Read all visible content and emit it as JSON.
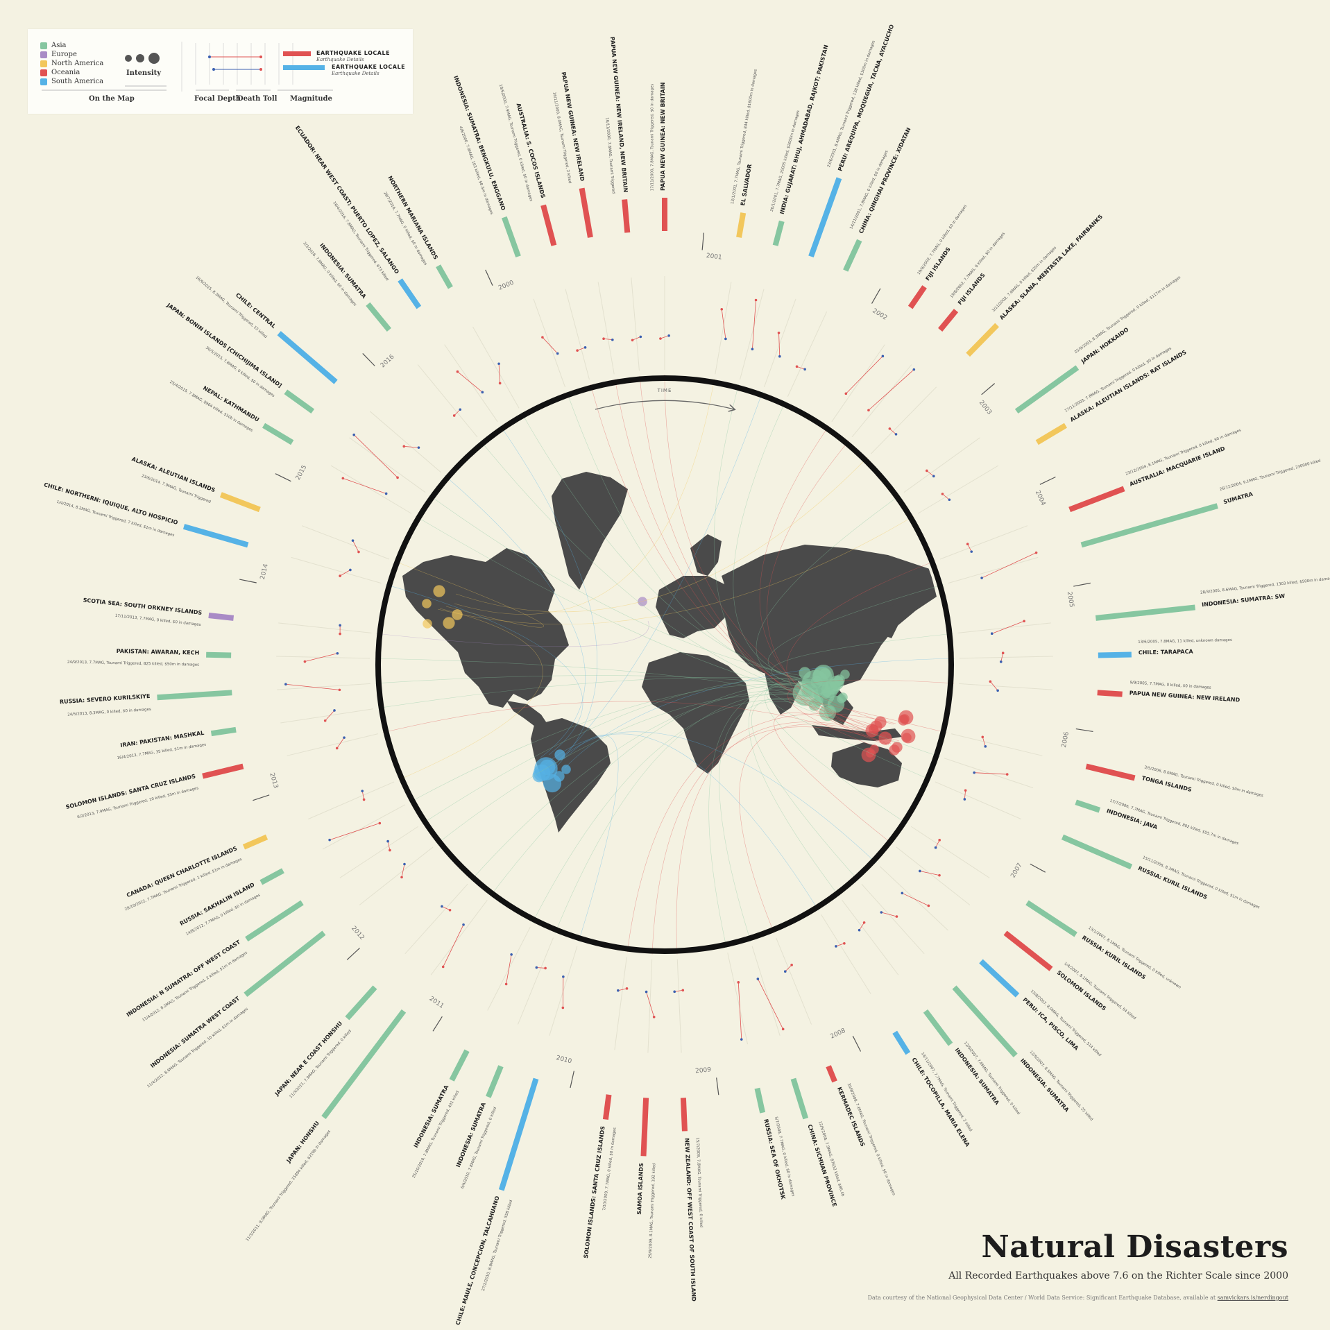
{
  "title": "Natural Disasters",
  "subtitle": "All Recorded Earthquakes above 7.6 on the Richter Scale since 2000",
  "credit": "Data courtesy of the National Geophysical Data Center / World Data Service: Significant Earthquake Database, available at",
  "credit_link": "samvickars.is/nerdingout",
  "time_label": "TIME",
  "legend": {
    "regions": [
      {
        "name": "Asia",
        "color": "#86c6a0"
      },
      {
        "name": "Europe",
        "color": "#a98bc6"
      },
      {
        "name": "North America",
        "color": "#f2c75c"
      },
      {
        "name": "Oceania",
        "color": "#e05252"
      },
      {
        "name": "South America",
        "color": "#55b2e6"
      }
    ],
    "on_the_map": "On the Map",
    "intensity": "Intensity",
    "focal_depth": "Focal Depth",
    "death_toll": "Death Toll",
    "magnitude": "Magnitude",
    "example_title": "EARTHQUAKE LOCALE",
    "example_sub": "Earthquake Details"
  },
  "colors": {
    "Asia": "#86c6a0",
    "Europe": "#a98bc6",
    "North America": "#f2c75c",
    "Oceania": "#e05252",
    "South America": "#55b2e6",
    "land": "#4a4a4a",
    "ring": "#111111",
    "background": "#f4f2e2"
  },
  "chart_data": {
    "type": "radial-timeline",
    "years": [
      "2000",
      "2001",
      "2002",
      "2003",
      "2004",
      "2005",
      "2006",
      "2007",
      "2008",
      "2009",
      "2010",
      "2011",
      "2012",
      "2013",
      "2014",
      "2015",
      "2016"
    ],
    "earthquakes": [
      {
        "year": "2000",
        "name": "INDONESIA: SUMATRA: BENGKULU, ENGGANO",
        "details": "4/6/2000, 7.9MAG, 103 killed, $8.3m in damages",
        "region": "Asia",
        "mag": 7.9,
        "deaths": 103,
        "depth": 33
      },
      {
        "year": "2000",
        "name": "AUSTRALIA: S. COCOS ISLANDS",
        "details": "18/6/2000, 7.9MAG, Tsunami Triggered, 0 killed, $0 in damages",
        "region": "Oceania",
        "mag": 7.9,
        "deaths": 0,
        "depth": 10
      },
      {
        "year": "2000",
        "name": "PAPUA NEW GUINEA: NEW IRELAND",
        "details": "16/11/2000, 8.0MAG, Tsunami Triggered, 2 killed",
        "region": "Oceania",
        "mag": 8.0,
        "deaths": 2,
        "depth": 33
      },
      {
        "year": "2000",
        "name": "PAPUA NEW GUINEA: NEW IRELAND, NEW BRITAIN",
        "details": "16/11/2000, 7.8MAG, Tsunami Triggered",
        "region": "Oceania",
        "mag": 7.8,
        "deaths": 0,
        "depth": 30
      },
      {
        "year": "2000",
        "name": "PAPUA NEW GUINEA: NEW BRITAIN",
        "details": "17/11/2000, 7.8MAG, Tsunami Triggered, $0 in damages",
        "region": "Oceania",
        "mag": 7.8,
        "deaths": 0,
        "depth": 33
      },
      {
        "year": "2001",
        "name": "EL SALVADOR",
        "details": "13/1/2001, 7.7MAG, Tsunami Triggered, 844 killed, $1600m in damages",
        "region": "North America",
        "mag": 7.7,
        "deaths": 844,
        "depth": 60
      },
      {
        "year": "2001",
        "name": "INDIA: GUJARAT: BHUJ, AHMADABAD, RAJKOT; PAKISTAN",
        "details": "26/1/2001, 7.7MAG, 20005 killed, $2600m in damages",
        "region": "Asia",
        "mag": 7.7,
        "deaths": 20005,
        "depth": 16
      },
      {
        "year": "2001",
        "name": "PERU: AREQUIPA, MOQUEGUA, TACNA, AYACUCHO",
        "details": "23/6/2001, 8.4MAG, Tsunami Triggered, 138 killed, $300m in damages",
        "region": "South America",
        "mag": 8.4,
        "deaths": 138,
        "depth": 33
      },
      {
        "year": "2001",
        "name": "CHINA: QINGHAI PROVINCE: XIDATAN",
        "details": "14/11/2001, 7.8MAG, 0 killed, $0 in damages",
        "region": "Asia",
        "mag": 7.8,
        "deaths": 0,
        "depth": 10
      },
      {
        "year": "2002",
        "name": "FIJI ISLANDS",
        "details": "19/8/2002, 7.7MAG, 0 killed, $0 in damages",
        "region": "Oceania",
        "mag": 7.7,
        "deaths": 0,
        "depth": 580
      },
      {
        "year": "2002",
        "name": "FIJI ISLANDS",
        "details": "19/8/2002, 7.7MAG, 0 killed, $0 in damages",
        "region": "Oceania",
        "mag": 7.7,
        "deaths": 0,
        "depth": 675
      },
      {
        "year": "2002",
        "name": "ALASKA: SLANA, MENTASTA LAKE, FAIRBANKS",
        "details": "3/11/2002, 7.9MAG, 0 killed, $20m in damages",
        "region": "North America",
        "mag": 7.9,
        "deaths": 0,
        "depth": 5
      },
      {
        "year": "2003",
        "name": "JAPAN: HOKKAIDO",
        "details": "25/9/2003, 8.3MAG, Tsunami Triggered, 0 killed, $117m in damages",
        "region": "Asia",
        "mag": 8.3,
        "deaths": 0,
        "depth": 27
      },
      {
        "year": "2003",
        "name": "ALASKA: ALEUTIAN ISLANDS: RAT ISLANDS",
        "details": "17/11/2003, 7.8MAG, Tsunami Triggered, 0 killed, $0 in damages",
        "region": "North America",
        "mag": 7.8,
        "deaths": 0,
        "depth": 33
      },
      {
        "year": "2004",
        "name": "AUSTRALIA: MACQUARIE ISLAND",
        "details": "23/12/2004, 8.1MAG, Tsunami Triggered, 0 killed, $0 in damages",
        "region": "Oceania",
        "mag": 8.1,
        "deaths": 0,
        "depth": 10
      },
      {
        "year": "2004",
        "name": "SUMATRA",
        "details": "26/12/2004, 9.1MAG, Tsunami Triggered, 230000 killed",
        "region": "Asia",
        "mag": 9.1,
        "deaths": 230000,
        "depth": 30
      },
      {
        "year": "2005",
        "name": "INDONESIA: SUMATRA: SW",
        "details": "28/3/2005, 8.6MAG, Tsunami Triggered, 1303 killed, $500m in damages",
        "region": "Asia",
        "mag": 8.6,
        "deaths": 1303,
        "depth": 30
      },
      {
        "year": "2005",
        "name": "CHILE: TARAPACA",
        "details": "13/6/2005, 7.8MAG, 11 killed, unknown damages",
        "region": "South America",
        "mag": 7.8,
        "deaths": 11,
        "depth": 115
      },
      {
        "year": "2005",
        "name": "PAPUA NEW GUINEA: NEW IRELAND",
        "details": "9/9/2005, 7.7MAG, 0 killed, $0 in damages",
        "region": "Oceania",
        "mag": 7.7,
        "deaths": 0,
        "depth": 90
      },
      {
        "year": "2006",
        "name": "TONGA ISLANDS",
        "details": "3/5/2006, 8.0MAG, Tsunami Triggered, 0 killed, $0m in damages",
        "region": "Oceania",
        "mag": 8.0,
        "deaths": 0,
        "depth": 55
      },
      {
        "year": "2006",
        "name": "INDONESIA: JAVA",
        "details": "17/7/2006, 7.7MAG, Tsunami Triggered, 802 killed, $55.7m in damages",
        "region": "Asia",
        "mag": 7.7,
        "deaths": 802,
        "depth": 20
      },
      {
        "year": "2006",
        "name": "RUSSIA: KURIL ISLANDS",
        "details": "15/11/2006, 8.3MAG, Tsunami Triggered, 0 killed, $1m in damages",
        "region": "Asia",
        "mag": 8.3,
        "deaths": 0,
        "depth": 30
      },
      {
        "year": "2007",
        "name": "RUSSIA: KURIL ISLANDS",
        "details": "13/1/2007, 8.1MAG, Tsunami Triggered, 0 killed, unknown",
        "region": "Asia",
        "mag": 8.1,
        "deaths": 0,
        "depth": 10
      },
      {
        "year": "2007",
        "name": "SOLOMON ISLANDS",
        "details": "1/4/2007, 8.1MAG, Tsunami Triggered, 54 killed",
        "region": "Oceania",
        "mag": 8.1,
        "deaths": 54,
        "depth": 24
      },
      {
        "year": "2007",
        "name": "PERU: ICA, PISCO, LIMA",
        "details": "15/8/2007, 8.0MAG, Tsunami Triggered, 514 killed",
        "region": "South America",
        "mag": 8.0,
        "deaths": 514,
        "depth": 39
      },
      {
        "year": "2007",
        "name": "INDONESIA: SUMATRA",
        "details": "12/9/2007, 8.5MAG, Tsunami Triggered, 25 killed",
        "region": "Asia",
        "mag": 8.5,
        "deaths": 25,
        "depth": 34
      },
      {
        "year": "2007",
        "name": "INDONESIA: SUMATRA",
        "details": "12/9/2007, 7.9MAG, Tsunami Triggered, 0 killed",
        "region": "Asia",
        "mag": 7.9,
        "deaths": 0,
        "depth": 35
      },
      {
        "year": "2007",
        "name": "CHILE: TOCOPILLA, MARIA ELENA",
        "details": "14/11/2007, 7.7MAG, Tsunami Triggered, 2 killed",
        "region": "South America",
        "mag": 7.7,
        "deaths": 2,
        "depth": 40
      },
      {
        "year": "2008",
        "name": "KERMADEC ISLANDS",
        "details": "30/9/2008, 7.6MAG, Tsunami Triggered, 0 killed, $0 in damages",
        "region": "Oceania",
        "mag": 7.6,
        "deaths": 0,
        "depth": 40
      },
      {
        "year": "2008",
        "name": "CHINA: SICHUAN PROVINCE",
        "details": "12/5/2008, 7.9MAG, 87652 killed, $86.4b",
        "region": "Asia",
        "mag": 7.9,
        "deaths": 87652,
        "depth": 19
      },
      {
        "year": "2008",
        "name": "RUSSIA: SEA OF OKHOTSK",
        "details": "5/7/2008, 7.7MAG, 0 killed, $0 in damages",
        "region": "Asia",
        "mag": 7.7,
        "deaths": 0,
        "depth": 633
      },
      {
        "year": "2009",
        "name": "NEW ZEALAND: OFF WEST COAST OF SOUTH ISLAND",
        "details": "15/7/2009, 7.8MAG, Tsunami Triggered, 0 killed",
        "region": "Oceania",
        "mag": 7.8,
        "deaths": 0,
        "depth": 12
      },
      {
        "year": "2009",
        "name": "SAMOA ISLANDS",
        "details": "29/9/2009, 8.1MAG, Tsunami Triggered, 192 killed",
        "region": "Oceania",
        "mag": 8.1,
        "deaths": 192,
        "depth": 18
      },
      {
        "year": "2009",
        "name": "SOLOMON ISLANDS: SANTA CRUZ ISLANDS",
        "details": "7/10/2009, 7.7MAG, 0 killed, $0 in damages",
        "region": "Oceania",
        "mag": 7.7,
        "deaths": 0,
        "depth": 35
      },
      {
        "year": "2010",
        "name": "CHILE: MAULE, CONCEPCION, TALCAHUANO",
        "details": "27/2/2010, 8.8MAG, Tsunami Triggered, 558 killed",
        "region": "South America",
        "mag": 8.8,
        "deaths": 558,
        "depth": 23
      },
      {
        "year": "2010",
        "name": "INDONESIA: SUMATRA",
        "details": "6/4/2010, 7.8MAG, Tsunami Triggered, 0 killed",
        "region": "Asia",
        "mag": 7.8,
        "deaths": 0,
        "depth": 31
      },
      {
        "year": "2010",
        "name": "INDONESIA: SUMATRA",
        "details": "25/10/2010, 7.8MAG, Tsunami Triggered, 431 killed",
        "region": "Asia",
        "mag": 7.8,
        "deaths": 431,
        "depth": 20
      },
      {
        "year": "2011",
        "name": "JAPAN: HONSHU",
        "details": "11/3/2011, 9.0MAG, Tsunami Triggered, 15894 killed, $220b in damages",
        "region": "Asia",
        "mag": 9.0,
        "deaths": 15894,
        "depth": 30
      },
      {
        "year": "2011",
        "name": "JAPAN: NEAR E COAST HONSHU",
        "details": "11/3/2011, 7.9MAG, Tsunami Triggered, 0 killed",
        "region": "Asia",
        "mag": 7.9,
        "deaths": 0,
        "depth": 30
      },
      {
        "year": "2012",
        "name": "INDONESIA: SUMATRA WEST COAST",
        "details": "11/4/2012, 8.6MAG, Tsunami Triggered, 10 killed, $1m in damages",
        "region": "Asia",
        "mag": 8.6,
        "deaths": 10,
        "depth": 20
      },
      {
        "year": "2012",
        "name": "INDONESIA: N SUMATRA: OFF WEST COAST",
        "details": "11/4/2012, 8.2MAG, Tsunami Triggered, 2 killed, $1m in damages",
        "region": "Asia",
        "mag": 8.2,
        "deaths": 2,
        "depth": 25
      },
      {
        "year": "2012",
        "name": "RUSSIA: SAKHALIN ISLAND",
        "details": "14/8/2012, 7.7MAG, 0 killed, $0 in damages",
        "region": "Asia",
        "mag": 7.7,
        "deaths": 0,
        "depth": 583
      },
      {
        "year": "2012",
        "name": "CANADA: QUEEN CHARLOTTE ISLANDS",
        "details": "28/10/2012, 7.7MAG, Tsunami Triggered, 1 killed, $1m in damages",
        "region": "North America",
        "mag": 7.7,
        "deaths": 1,
        "depth": 18
      },
      {
        "year": "2013",
        "name": "SOLOMON ISLANDS: SANTA CRUZ ISLANDS",
        "details": "6/2/2013, 7.9MAG, Tsunami Triggered, 10 killed, $5m in damages",
        "region": "Oceania",
        "mag": 7.9,
        "deaths": 10,
        "depth": 29
      },
      {
        "year": "2013",
        "name": "IRAN: PAKISTAN: MASHKAL",
        "details": "16/4/2013, 7.7MAG, 35 killed, $1m in damages",
        "region": "Asia",
        "mag": 7.7,
        "deaths": 35,
        "depth": 82
      },
      {
        "year": "2013",
        "name": "RUSSIA: SEVERO KURILSKIYE",
        "details": "24/5/2013, 8.3MAG, 0 killed, $0 in damages",
        "region": "Asia",
        "mag": 8.3,
        "deaths": 0,
        "depth": 598
      },
      {
        "year": "2013",
        "name": "PAKISTAN: AWARAN, KECH",
        "details": "24/9/2013, 7.7MAG, Tsunami Triggered, 825 killed, $50m in damages",
        "region": "Asia",
        "mag": 7.7,
        "deaths": 825,
        "depth": 15
      },
      {
        "year": "2013",
        "name": "SCOTIA SEA: SOUTH ORKNEY ISLANDS",
        "details": "17/11/2013, 7.7MAG, 0 killed, $0 in damages",
        "region": "Europe",
        "mag": 7.7,
        "deaths": 0,
        "depth": 10
      },
      {
        "year": "2014",
        "name": "CHILE: NORTHERN: IQUIQUE, ALTO HOSPICIO",
        "details": "1/4/2014, 8.2MAG, Tsunami Triggered, 7 killed, $1m in damages",
        "region": "South America",
        "mag": 8.2,
        "deaths": 7,
        "depth": 25
      },
      {
        "year": "2014",
        "name": "ALASKA: ALEUTIAN ISLANDS",
        "details": "23/6/2014, 7.9MAG, Tsunami Triggered",
        "region": "North America",
        "mag": 7.9,
        "deaths": 0,
        "depth": 107
      },
      {
        "year": "2015",
        "name": "NEPAL: KATHMANDU",
        "details": "25/4/2015, 7.8MAG, 8964 killed, $10b in damages",
        "region": "Asia",
        "mag": 7.8,
        "deaths": 8964,
        "depth": 8
      },
      {
        "year": "2015",
        "name": "JAPAN: BONIN ISLANDS [CHICHIJIMA ISLAND]",
        "details": "30/5/2015, 7.8MAG, 0 killed, $0 in damages",
        "region": "Asia",
        "mag": 7.8,
        "deaths": 0,
        "depth": 677
      },
      {
        "year": "2015",
        "name": "CHILE: CENTRAL",
        "details": "16/9/2015, 8.3MAG, Tsunami Triggered, 15 killed",
        "region": "South America",
        "mag": 8.3,
        "deaths": 15,
        "depth": 22
      },
      {
        "year": "2016",
        "name": "INDONESIA: SUMATRA",
        "details": "2/3/2016, 7.8MAG, 0 killed, $0 in damages",
        "region": "Asia",
        "mag": 7.8,
        "deaths": 0,
        "depth": 10
      },
      {
        "year": "2016",
        "name": "ECUADOR: NEAR WEST COAST; PUERTO LOPEZ, SALANGO",
        "details": "16/4/2016, 7.8MAG, Tsunami Triggered, 673 killed",
        "region": "South America",
        "mag": 7.8,
        "deaths": 673,
        "depth": 19
      },
      {
        "year": "2016",
        "name": "NORTHERN MARIANA ISLANDS",
        "details": "28/7/2016, 7.7MAG, 0 killed, $0 in damages",
        "region": "Asia",
        "mag": 7.7,
        "deaths": 0,
        "depth": 196
      }
    ]
  }
}
